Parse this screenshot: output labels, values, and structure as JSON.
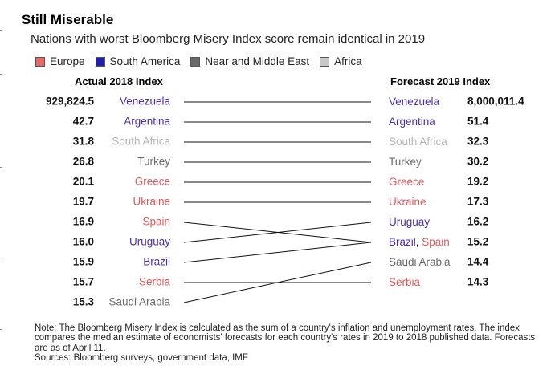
{
  "title": "Still Miserable",
  "subtitle": "Nations with worst Bloomberg Misery Index score remain identical in 2019",
  "legend": [
    {
      "label": "Europe",
      "color": "#e8686a"
    },
    {
      "label": "South America",
      "color": "#1f1fa8"
    },
    {
      "label": "Near and Middle East",
      "color": "#6a6a6a"
    },
    {
      "label": "Africa",
      "color": "#c8c8c8"
    }
  ],
  "colors": {
    "Europe": "#e0595b",
    "South America": "#4b2fb0",
    "Near and Middle East": "#6a6a6a",
    "Africa": "#b5b5b5"
  },
  "chart_data": {
    "type": "slope",
    "left_header": "Actual 2018 Index",
    "right_header": "Forecast 2019 Index",
    "left": [
      {
        "country": "Venezuela",
        "value": "929,824.5",
        "region": "South America"
      },
      {
        "country": "Argentina",
        "value": "42.7",
        "region": "South America"
      },
      {
        "country": "South Africa",
        "value": "31.8",
        "region": "Africa"
      },
      {
        "country": "Turkey",
        "value": "26.8",
        "region": "Near and Middle East"
      },
      {
        "country": "Greece",
        "value": "20.1",
        "region": "Europe"
      },
      {
        "country": "Ukraine",
        "value": "19.7",
        "region": "Europe"
      },
      {
        "country": "Spain",
        "value": "16.9",
        "region": "Europe"
      },
      {
        "country": "Uruguay",
        "value": "16.0",
        "region": "South America"
      },
      {
        "country": "Brazil",
        "value": "15.9",
        "region": "South America"
      },
      {
        "country": "Serbia",
        "value": "15.7",
        "region": "Europe"
      },
      {
        "country": "Saudi Arabia",
        "value": "15.3",
        "region": "Near and Middle East"
      }
    ],
    "right": [
      {
        "parts": [
          {
            "country": "Venezuela",
            "region": "South America"
          }
        ],
        "value": "8,000,011.4"
      },
      {
        "parts": [
          {
            "country": "Argentina",
            "region": "South America"
          }
        ],
        "value": "51.4"
      },
      {
        "parts": [
          {
            "country": "South Africa",
            "region": "Africa"
          }
        ],
        "value": "32.3"
      },
      {
        "parts": [
          {
            "country": "Turkey",
            "region": "Near and Middle East"
          }
        ],
        "value": "30.2"
      },
      {
        "parts": [
          {
            "country": "Greece",
            "region": "Europe"
          }
        ],
        "value": "19.2"
      },
      {
        "parts": [
          {
            "country": "Ukraine",
            "region": "Europe"
          }
        ],
        "value": "17.3"
      },
      {
        "parts": [
          {
            "country": "Uruguay",
            "region": "South America"
          }
        ],
        "value": "16.2"
      },
      {
        "parts": [
          {
            "country": "Brazil",
            "region": "South America"
          },
          {
            "country": "Spain",
            "region": "Europe"
          }
        ],
        "value": "15.2"
      },
      {
        "parts": [
          {
            "country": "Saudi Arabia",
            "region": "Near and Middle East"
          }
        ],
        "value": "14.4"
      },
      {
        "parts": [
          {
            "country": "Serbia",
            "region": "Europe"
          }
        ],
        "value": "14.3"
      }
    ],
    "links": [
      {
        "country": "Venezuela",
        "from": 0,
        "to": 0
      },
      {
        "country": "Argentina",
        "from": 1,
        "to": 1
      },
      {
        "country": "South Africa",
        "from": 2,
        "to": 2
      },
      {
        "country": "Turkey",
        "from": 3,
        "to": 3
      },
      {
        "country": "Greece",
        "from": 4,
        "to": 4
      },
      {
        "country": "Ukraine",
        "from": 5,
        "to": 5
      },
      {
        "country": "Spain",
        "from": 6,
        "to": 7
      },
      {
        "country": "Uruguay",
        "from": 7,
        "to": 6
      },
      {
        "country": "Brazil",
        "from": 8,
        "to": 7
      },
      {
        "country": "Serbia",
        "from": 9,
        "to": 9
      },
      {
        "country": "Saudi Arabia",
        "from": 10,
        "to": 8
      }
    ]
  },
  "note": {
    "text": "Note: The Bloomberg Misery Index is calculated as the sum of a country's inflation and unemployment rates. The index compares the median estimate of economists' forecasts for each country's rates in 2019 to 2018 published data. Forecasts are as of April 11.",
    "sources": "Sources: Bloomberg surveys, government data, IMF"
  }
}
